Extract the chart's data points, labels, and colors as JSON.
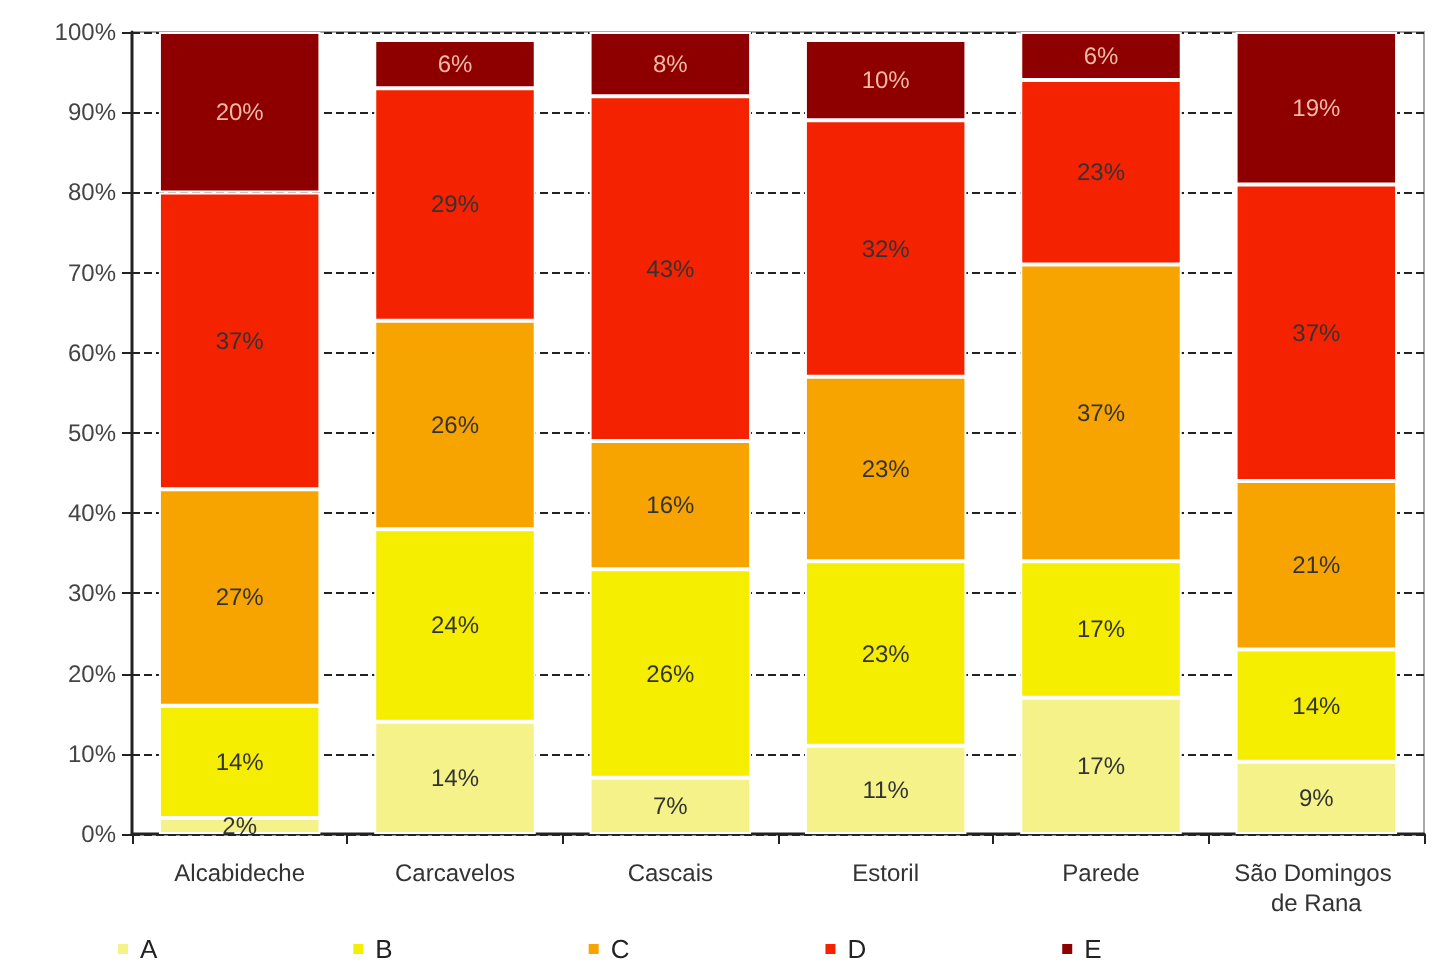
{
  "chart_data": {
    "type": "bar",
    "stacked": true,
    "categories": [
      "Alcabideche",
      "Carcavelos",
      "Cascais",
      "Estoril",
      "Parede",
      "São Domingos de Rana"
    ],
    "series": [
      {
        "name": "A",
        "color": "#f6f28a",
        "values": [
          2,
          14,
          7,
          11,
          17,
          9
        ],
        "value_labels": [
          "2%",
          "14%",
          "7%",
          "11%",
          "17%",
          "9%"
        ]
      },
      {
        "name": "B",
        "color": "#f5ee00",
        "values": [
          14,
          24,
          26,
          23,
          17,
          14
        ],
        "value_labels": [
          "14%",
          "24%",
          "26%",
          "23%",
          "17%",
          "14%"
        ]
      },
      {
        "name": "C",
        "color": "#f7a400",
        "values": [
          27,
          26,
          16,
          23,
          37,
          21
        ],
        "value_labels": [
          "27%",
          "26%",
          "16%",
          "23%",
          "37%",
          "21%"
        ]
      },
      {
        "name": "D",
        "color": "#f52200",
        "values": [
          37,
          29,
          43,
          32,
          23,
          37
        ],
        "value_labels": [
          "37%",
          "29%",
          "43%",
          "32%",
          "23%",
          "37%"
        ]
      },
      {
        "name": "E",
        "color": "#8e0000",
        "values": [
          20,
          6,
          8,
          10,
          6,
          19
        ],
        "value_labels": [
          "20%",
          "6%",
          "8%",
          "10%",
          "6%",
          "19%"
        ]
      }
    ],
    "ylim": [
      0,
      100
    ],
    "yticks": [
      {
        "value": 0,
        "label": "0%"
      },
      {
        "value": 10,
        "label": "10%"
      },
      {
        "value": 20,
        "label": "20%"
      },
      {
        "value": 30,
        "label": "30%"
      },
      {
        "value": 40,
        "label": "40%"
      },
      {
        "value": 50,
        "label": "50%"
      },
      {
        "value": 60,
        "label": "60%"
      },
      {
        "value": 70,
        "label": "70%"
      },
      {
        "value": 80,
        "label": "80%"
      },
      {
        "value": 90,
        "label": "90%"
      },
      {
        "value": 100,
        "label": "100%"
      }
    ],
    "grid": "y",
    "legend": "bottom"
  }
}
